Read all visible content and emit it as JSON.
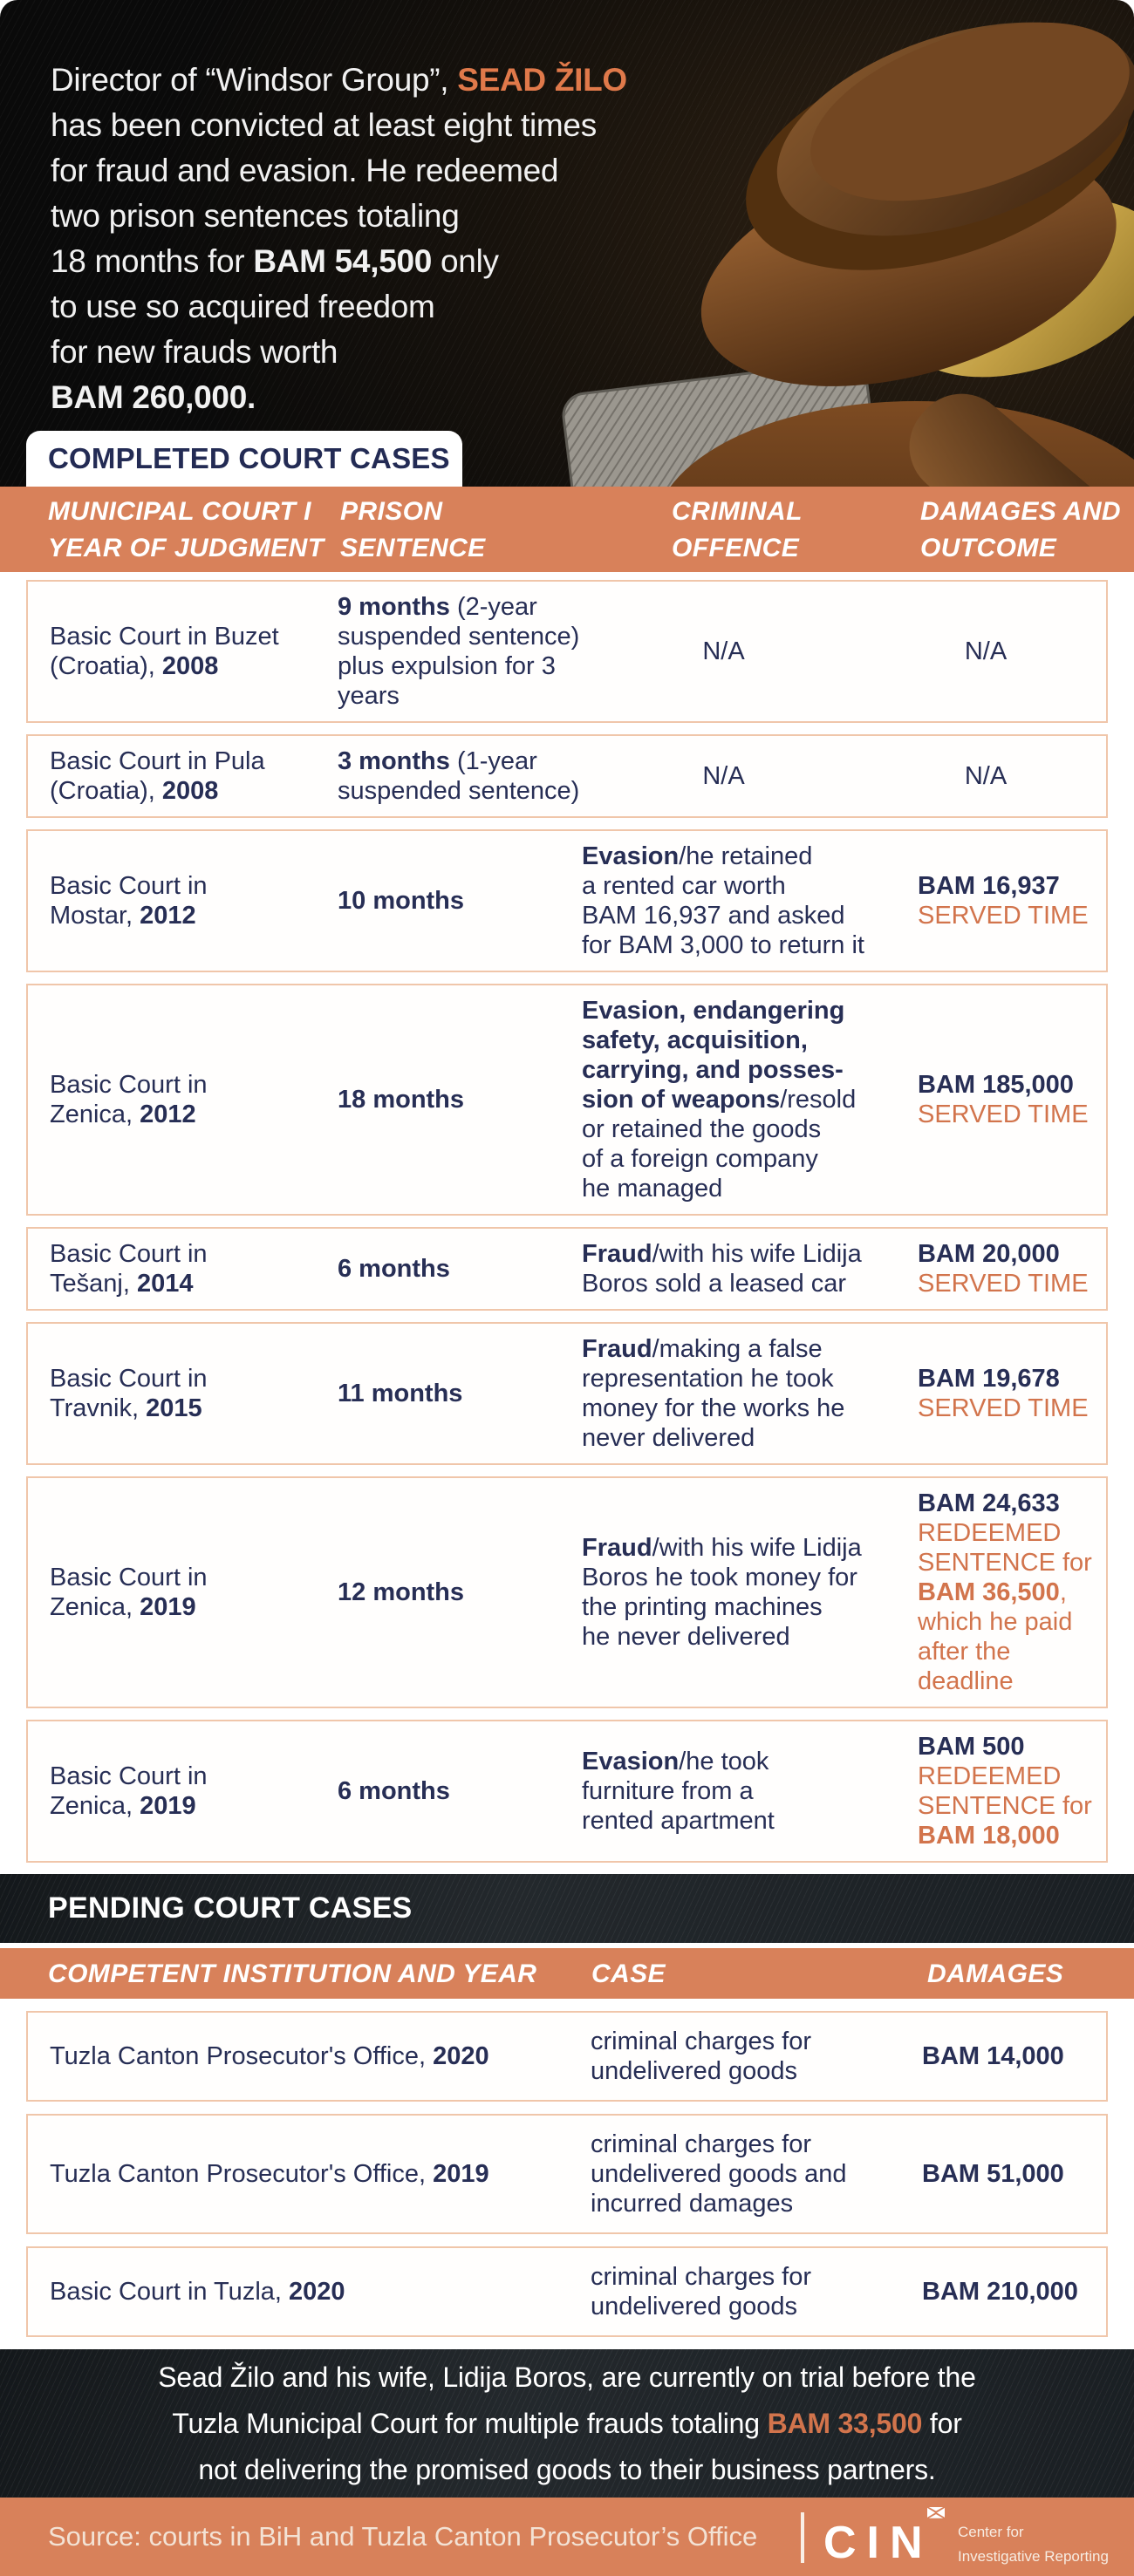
{
  "colors": {
    "accent_orange": "#d8815a",
    "accent_text_orange": "#d2744c",
    "name_orange": "#e0794a",
    "text_navy": "#272e55",
    "row_border": "#f0c6aa",
    "dark_band": "#1d2226"
  },
  "hero": {
    "lines": [
      [
        {
          "t": "Director of “Windsor Group”, ",
          "s": ""
        },
        {
          "t": "SEAD ŽILO",
          "s": "name"
        }
      ],
      [
        {
          "t": "has been convicted at least eight times",
          "s": ""
        }
      ],
      [
        {
          "t": "for fraud and evasion. He redeemed",
          "s": ""
        }
      ],
      [
        {
          "t": "two prison sentences totaling",
          "s": ""
        }
      ],
      [
        {
          "t": "18 months for ",
          "s": ""
        },
        {
          "t": "BAM 54,500",
          "s": "b"
        },
        {
          "t": " only",
          "s": ""
        }
      ],
      [
        {
          "t": "to use so acquired freedom",
          "s": ""
        }
      ],
      [
        {
          "t": "for new frauds worth",
          "s": ""
        }
      ],
      [
        {
          "t": "BAM 260,000.",
          "s": "b"
        }
      ]
    ],
    "completed_label": "COMPLETED COURT CASES"
  },
  "completed_table": {
    "headers": [
      {
        "l1": "MUNICIPAL COURT I",
        "l2": "YEAR OF JUDGMENT"
      },
      {
        "l1": "PRISON",
        "l2": "SENTENCE"
      },
      {
        "l1": "CRIMINAL",
        "l2": "OFFENCE"
      },
      {
        "l1": "DAMAGES AND",
        "l2": "OUTCOME"
      }
    ],
    "rows": [
      {
        "court": [
          {
            "t": "Basic Court in Buzet\n(Croatia), ",
            "s": ""
          },
          {
            "t": "2008",
            "s": "b"
          }
        ],
        "sentence": [
          {
            "t": "9 months",
            "s": "b"
          },
          {
            "t": " (2-year\nsuspended sentence)\nplus expulsion for 3\nyears",
            "s": ""
          }
        ],
        "offence": [
          {
            "t": "N/A",
            "s": ""
          }
        ],
        "offence_align": "center",
        "damages": [
          {
            "t": "N/A",
            "s": ""
          }
        ],
        "damages_align": "center"
      },
      {
        "court": [
          {
            "t": "Basic Court in Pula\n(Croatia), ",
            "s": ""
          },
          {
            "t": "2008",
            "s": "b"
          }
        ],
        "sentence": [
          {
            "t": "3 months",
            "s": "b"
          },
          {
            "t": " (1-year\nsuspended sentence)",
            "s": ""
          }
        ],
        "offence": [
          {
            "t": "N/A",
            "s": ""
          }
        ],
        "offence_align": "center",
        "damages": [
          {
            "t": "N/A",
            "s": ""
          }
        ],
        "damages_align": "center"
      },
      {
        "court": [
          {
            "t": "Basic Court in\nMostar, ",
            "s": ""
          },
          {
            "t": "2012",
            "s": "b"
          }
        ],
        "sentence": [
          {
            "t": "10 months",
            "s": "b"
          }
        ],
        "offence": [
          {
            "t": "Evasion",
            "s": "b"
          },
          {
            "t": "/he retained\na rented car worth\nBAM 16,937 and asked\nfor BAM 3,000 to return it",
            "s": ""
          }
        ],
        "damages": [
          {
            "t": "BAM 16,937",
            "s": "b"
          },
          {
            "t": "\n",
            "s": ""
          },
          {
            "t": "SERVED TIME",
            "s": "o"
          }
        ]
      },
      {
        "court": [
          {
            "t": "Basic Court in\nZenica, ",
            "s": ""
          },
          {
            "t": "2012",
            "s": "b"
          }
        ],
        "sentence": [
          {
            "t": "18 months",
            "s": "b"
          }
        ],
        "offence": [
          {
            "t": "Evasion, endangering\nsafety, acquisition,\ncarrying, and posses-\nsion of weapons",
            "s": "b"
          },
          {
            "t": "/resold\nor retained the goods\nof a foreign company\nhe managed",
            "s": ""
          }
        ],
        "damages": [
          {
            "t": "BAM 185,000",
            "s": "b"
          },
          {
            "t": "\n",
            "s": ""
          },
          {
            "t": "SERVED TIME",
            "s": "o"
          }
        ]
      },
      {
        "court": [
          {
            "t": "Basic Court in\nTešanj, ",
            "s": ""
          },
          {
            "t": "2014",
            "s": "b"
          }
        ],
        "sentence": [
          {
            "t": "6 months",
            "s": "b"
          }
        ],
        "offence": [
          {
            "t": "Fraud",
            "s": "b"
          },
          {
            "t": "/with his wife Lidija\nBoros sold a leased car",
            "s": ""
          }
        ],
        "damages": [
          {
            "t": "BAM 20,000",
            "s": "b"
          },
          {
            "t": "\n",
            "s": ""
          },
          {
            "t": "SERVED TIME",
            "s": "o"
          }
        ]
      },
      {
        "court": [
          {
            "t": "Basic Court in\nTravnik, ",
            "s": ""
          },
          {
            "t": "2015",
            "s": "b"
          }
        ],
        "sentence": [
          {
            "t": "11 months",
            "s": "b"
          }
        ],
        "offence": [
          {
            "t": "Fraud",
            "s": "b"
          },
          {
            "t": "/making a false\nrepresentation he took\nmoney for the works he\nnever delivered",
            "s": ""
          }
        ],
        "damages": [
          {
            "t": "BAM 19,678",
            "s": "b"
          },
          {
            "t": "\n",
            "s": ""
          },
          {
            "t": "SERVED TIME",
            "s": "o"
          }
        ]
      },
      {
        "court": [
          {
            "t": "Basic Court in\nZenica, ",
            "s": ""
          },
          {
            "t": "2019",
            "s": "b"
          }
        ],
        "sentence": [
          {
            "t": "12 months",
            "s": "b"
          }
        ],
        "offence": [
          {
            "t": "Fraud",
            "s": "b"
          },
          {
            "t": "/with his wife Lidija\nBoros he took money for\nthe printing machines\nhe never delivered",
            "s": ""
          }
        ],
        "damages": [
          {
            "t": "BAM 24,633",
            "s": "b"
          },
          {
            "t": "\n",
            "s": ""
          },
          {
            "t": "REDEEMED\nSENTENCE for\n",
            "s": "o"
          },
          {
            "t": "BAM 36,500",
            "s": "ob"
          },
          {
            "t": ",\nwhich he paid\nafter the\ndeadline",
            "s": "o"
          }
        ]
      },
      {
        "court": [
          {
            "t": "Basic Court in\nZenica, ",
            "s": ""
          },
          {
            "t": "2019",
            "s": "b"
          }
        ],
        "sentence": [
          {
            "t": "6 months",
            "s": "b"
          }
        ],
        "offence": [
          {
            "t": "Evasion",
            "s": "b"
          },
          {
            "t": "/he took\nfurniture from a\nrented apartment",
            "s": ""
          }
        ],
        "damages": [
          {
            "t": "BAM 500",
            "s": "b"
          },
          {
            "t": "\n",
            "s": ""
          },
          {
            "t": "REDEEMED\nSENTENCE for\n",
            "s": "o"
          },
          {
            "t": "BAM 18,000",
            "s": "ob"
          }
        ]
      }
    ]
  },
  "pending": {
    "label": "PENDING COURT CASES",
    "headers": [
      "COMPETENT INSTITUTION AND YEAR",
      "CASE",
      "DAMAGES"
    ],
    "rows": [
      {
        "institution": [
          {
            "t": "Tuzla Canton Prosecutor's Office, ",
            "s": ""
          },
          {
            "t": "2020",
            "s": "b"
          }
        ],
        "case": [
          {
            "t": "criminal charges for\nundelivered goods",
            "s": ""
          }
        ],
        "damages": [
          {
            "t": "BAM 14,000",
            "s": "b"
          }
        ]
      },
      {
        "institution": [
          {
            "t": "Tuzla Canton Prosecutor's Office, ",
            "s": ""
          },
          {
            "t": "2019",
            "s": "b"
          }
        ],
        "case": [
          {
            "t": "criminal charges for\nundelivered goods and\nincurred damages",
            "s": ""
          }
        ],
        "damages": [
          {
            "t": "BAM 51,000",
            "s": "b"
          }
        ]
      },
      {
        "institution": [
          {
            "t": "Basic Court in Tuzla, ",
            "s": ""
          },
          {
            "t": "2020",
            "s": "b"
          }
        ],
        "case": [
          {
            "t": "criminal charges for\nundelivered goods",
            "s": ""
          }
        ],
        "damages": [
          {
            "t": "BAM 210,000",
            "s": "b"
          }
        ]
      }
    ]
  },
  "bottom_note": {
    "lines": [
      [
        {
          "t": "Sead Žilo and his wife, Lidija Boros, are currently on trial before the",
          "s": ""
        }
      ],
      [
        {
          "t": "Tuzla Municipal Court for multiple frauds totaling ",
          "s": ""
        },
        {
          "t": "BAM 33,500",
          "s": "ob"
        },
        {
          "t": " for",
          "s": ""
        }
      ],
      [
        {
          "t": "not delivering the promised goods to their business partners.",
          "s": ""
        }
      ]
    ]
  },
  "footer": {
    "source": "Source: courts in BiH and Tuzla Canton Prosecutor’s Office",
    "logo_text": "CIN",
    "org_lines": "Center for\nInvestigative Reporting"
  }
}
